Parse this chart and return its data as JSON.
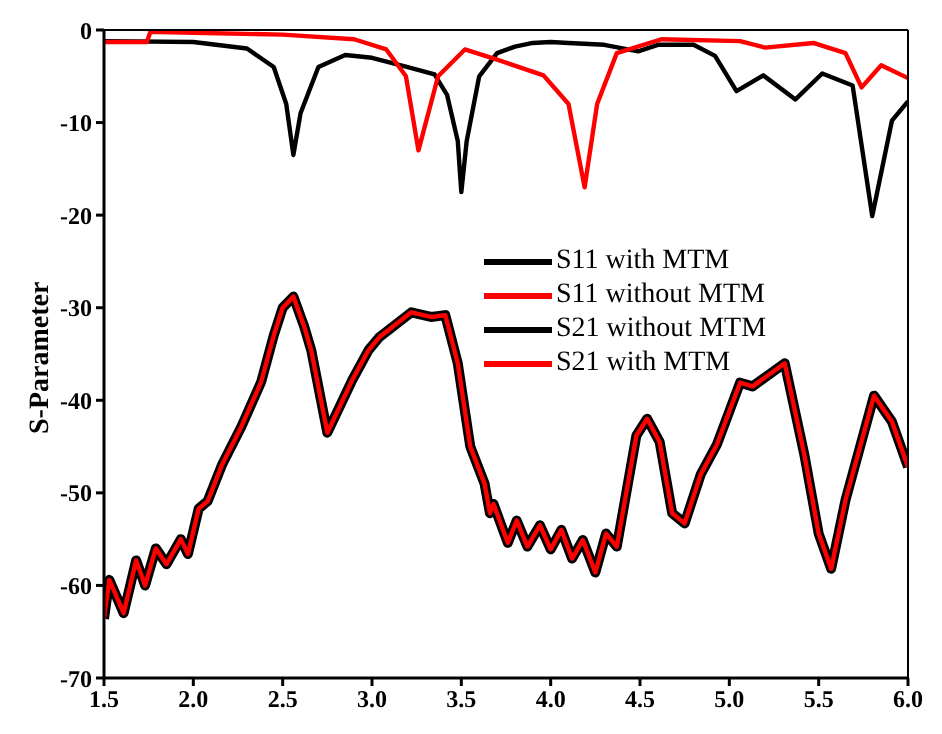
{
  "chart_data": {
    "type": "line",
    "ylabel": "S-Parameter",
    "xlim": [
      1.5,
      6.0
    ],
    "xticks": [
      1.5,
      {
        "value": 2,
        "label": "2.0"
      },
      2.5,
      {
        "value": 3,
        "label": "3.0"
      },
      3.5,
      {
        "value": 4,
        "label": "4.0"
      },
      4.5,
      {
        "value": 5,
        "label": "5.0"
      },
      5.5,
      {
        "value": 6,
        "label": "6.0"
      }
    ],
    "ylim": [
      -70,
      0
    ],
    "yticks": [
      -70,
      -60,
      -50,
      -40,
      -30,
      -20,
      -10,
      0
    ],
    "grid": false,
    "legend": "center",
    "marker": "none",
    "line_style": "solid",
    "series": [
      {
        "name": "S11 with MTM",
        "color": "#000000",
        "x": [
          1.5,
          2.0,
          2.3,
          2.45,
          2.52,
          2.56,
          2.6,
          2.7,
          2.85,
          3.0,
          3.2,
          3.35,
          3.42,
          3.48,
          3.5,
          3.53,
          3.6,
          3.7,
          3.8,
          3.9,
          4.0,
          4.1,
          4.3,
          4.49,
          4.6,
          4.8,
          4.92,
          5.04,
          5.19,
          5.37,
          5.52,
          5.69,
          5.8,
          5.91,
          6.0
        ],
        "values": [
          -1.2,
          -1.3,
          -2,
          -4,
          -8,
          -13.5,
          -9,
          -4,
          -2.7,
          -3,
          -4,
          -4.8,
          -7,
          -12,
          -17.5,
          -12,
          -5,
          -2.5,
          -1.8,
          -1.4,
          -1.3,
          -1.4,
          -1.6,
          -2.3,
          -1.6,
          -1.6,
          -2.8,
          -6.6,
          -4.9,
          -7.5,
          -4.7,
          -6,
          -20.1,
          -9.8,
          -7.7
        ]
      },
      {
        "name": "S11 without MTM",
        "color": "#ff0000",
        "x": [
          1.5,
          1.74,
          1.76,
          2.0,
          2.5,
          2.9,
          3.08,
          3.19,
          3.26,
          3.37,
          3.52,
          3.7,
          3.96,
          4.1,
          4.19,
          4.26,
          4.37,
          4.62,
          5.06,
          5.2,
          5.47,
          5.65,
          5.74,
          5.85,
          6.0
        ],
        "values": [
          -1.3,
          -1.3,
          -0.2,
          -0.3,
          -0.5,
          -1,
          -2.1,
          -5,
          -13,
          -5,
          -2.1,
          -3.2,
          -4.9,
          -8,
          -17,
          -8,
          -2.5,
          -1,
          -1.2,
          -1.9,
          -1.4,
          -2.5,
          -6.2,
          -3.8,
          -5.2
        ]
      },
      {
        "name": "S21 without MTM",
        "color": "#000000",
        "x": [
          1.5,
          1.53,
          1.61,
          1.68,
          1.73,
          1.79,
          1.85,
          1.93,
          1.97,
          2.03,
          2.08,
          2.16,
          2.27,
          2.38,
          2.45,
          2.5,
          2.56,
          2.62,
          2.66,
          2.75,
          2.89,
          2.98,
          3.04,
          3.22,
          3.33,
          3.41,
          3.48,
          3.55,
          3.63,
          3.66,
          3.68,
          3.76,
          3.81,
          3.87,
          3.94,
          4.0,
          4.06,
          4.12,
          4.18,
          4.25,
          4.31,
          4.37,
          4.48,
          4.54,
          4.61,
          4.68,
          4.75,
          4.84,
          4.93,
          5.06,
          5.13,
          5.31,
          5.42,
          5.5,
          5.57,
          5.65,
          5.81,
          5.91,
          6.0
        ],
        "values": [
          -63.6,
          -59.4,
          -63,
          -57.3,
          -60,
          -56,
          -57.7,
          -55,
          -56.6,
          -51.7,
          -50.9,
          -47,
          -42.8,
          -38,
          -33,
          -30,
          -28.8,
          -32,
          -34.6,
          -43.5,
          -37.8,
          -34.6,
          -33.2,
          -30.5,
          -31,
          -30.8,
          -36,
          -45,
          -49,
          -52.2,
          -51.2,
          -55.4,
          -53,
          -55.8,
          -53.5,
          -56.1,
          -54,
          -57.1,
          -55.1,
          -58.6,
          -54.4,
          -55.8,
          -43.8,
          -42,
          -44.5,
          -52.2,
          -53.3,
          -48,
          -44.8,
          -38.1,
          -38.5,
          -36,
          -45.9,
          -54.4,
          -58.2,
          -50.8,
          -39.5,
          -42.3,
          -47.2
        ]
      },
      {
        "name": "S21 with MTM",
        "color": "#ff0000",
        "x": [
          1.5,
          1.53,
          1.61,
          1.68,
          1.73,
          1.79,
          1.85,
          1.93,
          1.97,
          2.03,
          2.08,
          2.16,
          2.27,
          2.38,
          2.45,
          2.5,
          2.56,
          2.62,
          2.66,
          2.75,
          2.89,
          2.98,
          3.04,
          3.22,
          3.33,
          3.41,
          3.48,
          3.55,
          3.63,
          3.66,
          3.68,
          3.76,
          3.81,
          3.87,
          3.94,
          4.0,
          4.06,
          4.12,
          4.18,
          4.25,
          4.31,
          4.37,
          4.48,
          4.54,
          4.61,
          4.68,
          4.75,
          4.84,
          4.93,
          5.06,
          5.13,
          5.31,
          5.42,
          5.5,
          5.57,
          5.65,
          5.81,
          5.91,
          6.0
        ],
        "values": [
          -63.6,
          -59.4,
          -63,
          -57.3,
          -60,
          -56,
          -57.7,
          -55,
          -56.6,
          -51.7,
          -50.9,
          -47,
          -42.8,
          -38,
          -33,
          -30,
          -28.8,
          -32,
          -34.6,
          -43.5,
          -37.8,
          -34.6,
          -33.2,
          -30.5,
          -31,
          -30.8,
          -36,
          -45,
          -49,
          -52.2,
          -51.2,
          -55.4,
          -53,
          -55.8,
          -53.5,
          -56.1,
          -54,
          -57.1,
          -55.1,
          -58.6,
          -54.4,
          -55.8,
          -43.8,
          -42,
          -44.5,
          -52.2,
          -53.3,
          -48,
          -44.8,
          -38.1,
          -38.5,
          -36,
          -45.9,
          -54.4,
          -58.2,
          -50.8,
          -39.5,
          -42.3,
          -47.2
        ]
      }
    ]
  }
}
